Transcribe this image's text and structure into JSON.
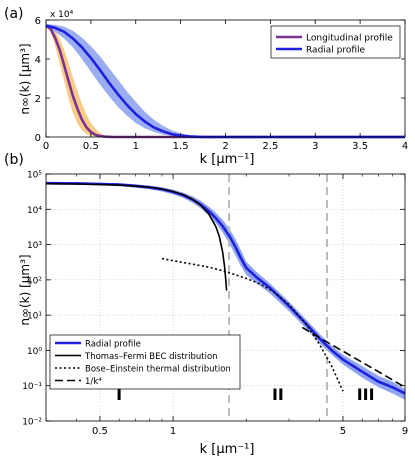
{
  "chart_data": [
    {
      "type": "line",
      "panel_label": "(a)",
      "xlabel": "k  [μm⁻¹]",
      "ylabel": "n∞(k) [μm³]",
      "y_exponent_label": "x 10⁴",
      "xlim": [
        0,
        4
      ],
      "ylim": [
        0,
        6
      ],
      "xticks": [
        0,
        0.5,
        1,
        1.5,
        2,
        2.5,
        3,
        3.5,
        4
      ],
      "xtick_labels": [
        "0",
        "0.5",
        "1",
        "1.5",
        "2",
        "2.5",
        "3",
        "3.5",
        "4"
      ],
      "yticks": [
        0,
        2,
        4,
        6
      ],
      "ytick_labels": [
        "0",
        "2",
        "4",
        "6"
      ],
      "grid": false,
      "legend_position": "top-right",
      "series": [
        {
          "name": "Longitudinal profile",
          "color": "#7b3294",
          "band_color": "#f9c47a",
          "x": [
            0,
            0.05,
            0.1,
            0.15,
            0.2,
            0.25,
            0.3,
            0.35,
            0.4,
            0.45,
            0.5,
            0.55,
            0.6,
            0.65,
            0.7,
            0.75,
            0.8,
            0.9,
            1.0,
            1.5,
            2,
            3,
            4
          ],
          "values": [
            5.7,
            5.55,
            5.1,
            4.5,
            3.7,
            2.9,
            2.1,
            1.45,
            0.9,
            0.5,
            0.25,
            0.12,
            0.05,
            0.02,
            0.01,
            0,
            0,
            0,
            0,
            0,
            0,
            0,
            0
          ],
          "band_lower": [
            5.7,
            5.4,
            4.7,
            3.8,
            2.9,
            2.0,
            1.25,
            0.7,
            0.35,
            0.15,
            0.05,
            0.02,
            0,
            0,
            0,
            0,
            0,
            0,
            0,
            0,
            0,
            0,
            0
          ],
          "band_upper": [
            5.7,
            5.65,
            5.45,
            5.05,
            4.5,
            3.8,
            3.05,
            2.35,
            1.7,
            1.15,
            0.72,
            0.42,
            0.22,
            0.1,
            0.05,
            0.02,
            0.01,
            0,
            0,
            0,
            0,
            0,
            0
          ]
        },
        {
          "name": "Radial profile",
          "color": "#1f1fe0",
          "band_color": "#8fa4ef",
          "x": [
            0,
            0.1,
            0.2,
            0.3,
            0.4,
            0.5,
            0.6,
            0.7,
            0.8,
            0.9,
            1.0,
            1.1,
            1.2,
            1.3,
            1.4,
            1.5,
            1.6,
            1.7,
            1.8,
            1.9,
            2.0,
            2.5,
            3,
            3.5,
            4
          ],
          "values": [
            5.7,
            5.6,
            5.4,
            5.05,
            4.6,
            4.05,
            3.45,
            2.8,
            2.2,
            1.65,
            1.18,
            0.8,
            0.5,
            0.3,
            0.15,
            0.07,
            0.03,
            0.01,
            0,
            0,
            0,
            0,
            0,
            0,
            0
          ],
          "band_lower": [
            5.6,
            5.4,
            5.05,
            4.6,
            4.0,
            3.35,
            2.7,
            2.1,
            1.55,
            1.1,
            0.72,
            0.45,
            0.26,
            0.13,
            0.06,
            0.02,
            0.01,
            0,
            0,
            0,
            0,
            0,
            0,
            0,
            0
          ],
          "band_upper": [
            5.8,
            5.75,
            5.65,
            5.45,
            5.1,
            4.65,
            4.15,
            3.55,
            2.95,
            2.35,
            1.8,
            1.3,
            0.9,
            0.58,
            0.35,
            0.19,
            0.09,
            0.04,
            0.01,
            0,
            0,
            0,
            0,
            0,
            0
          ]
        }
      ]
    },
    {
      "type": "line",
      "panel_label": "(b)",
      "xlabel": "k  [μm⁻¹]",
      "ylabel": "n∞(k) [μm³]",
      "x_scale": "log",
      "y_scale": "log",
      "xlim": [
        0.3,
        9
      ],
      "ylim": [
        0.01,
        100000
      ],
      "xticks": [
        0.5,
        1,
        5,
        9
      ],
      "xtick_labels": [
        "0.5",
        "1",
        "5",
        "9"
      ],
      "yticks": [
        0.01,
        0.1,
        1,
        10,
        100,
        1000,
        10000,
        100000
      ],
      "ytick_labels": [
        "10⁻²",
        "10⁻¹",
        "10⁰",
        "10¹",
        "10²",
        "10³",
        "10⁴",
        "10⁵"
      ],
      "grid": true,
      "legend_position": "bottom-left",
      "vlines": [
        1.7,
        4.3
      ],
      "region_labels": [
        {
          "text": "I",
          "x": 0.6,
          "y": 0.04
        },
        {
          "text": "II",
          "x": 2.7,
          "y": 0.04
        },
        {
          "text": "III",
          "x": 6.2,
          "y": 0.04
        }
      ],
      "series": [
        {
          "name": "Radial profile",
          "style": "solid-band",
          "color": "#1f1fe0",
          "band_color": "#8fa4ef",
          "x": [
            0.3,
            0.4,
            0.5,
            0.6,
            0.7,
            0.8,
            0.9,
            1.0,
            1.1,
            1.2,
            1.3,
            1.4,
            1.5,
            1.6,
            1.7,
            1.8,
            1.9,
            2.0,
            2.2,
            2.5,
            3.0,
            3.5,
            4.0,
            4.5,
            5.0,
            6.0,
            7.0,
            8.0,
            9.0
          ],
          "values": [
            55000,
            54000,
            52000,
            50000,
            46000,
            42000,
            37000,
            31000,
            25000,
            19000,
            13500,
            9000,
            5600,
            3300,
            1800,
            900,
            420,
            220,
            120,
            60,
            18,
            6,
            2.2,
            1.0,
            0.55,
            0.25,
            0.13,
            0.09,
            0.06
          ],
          "band_lower": [
            50000,
            49000,
            47000,
            45000,
            41000,
            37000,
            32000,
            26500,
            21000,
            15500,
            10500,
            6800,
            4000,
            2200,
            1100,
            520,
            250,
            140,
            80,
            42,
            13,
            4.4,
            1.6,
            0.75,
            0.4,
            0.17,
            0.09,
            0.06,
            0.04
          ],
          "band_upper": [
            60000,
            59000,
            57000,
            55000,
            51000,
            47000,
            42000,
            36000,
            30000,
            23500,
            17500,
            12000,
            8000,
            5000,
            2900,
            1500,
            700,
            330,
            170,
            80,
            24,
            8,
            3,
            1.35,
            0.75,
            0.36,
            0.19,
            0.13,
            0.08
          ]
        },
        {
          "name": "Thomas–Fermi BEC distribution",
          "style": "solid",
          "color": "#000000",
          "x": [
            0.3,
            0.4,
            0.5,
            0.6,
            0.7,
            0.8,
            0.9,
            1.0,
            1.1,
            1.2,
            1.3,
            1.4,
            1.5,
            1.55,
            1.6,
            1.63,
            1.65,
            1.66
          ],
          "values": [
            53000,
            52000,
            50500,
            48500,
            45500,
            42000,
            37500,
            32000,
            26000,
            19500,
            13000,
            7500,
            3200,
            1700,
            600,
            220,
            90,
            50
          ]
        },
        {
          "name": "Bose–Einstein thermal distribution",
          "style": "dotted",
          "color": "#000000",
          "x": [
            0.9,
            1.0,
            1.2,
            1.4,
            1.6,
            1.8,
            2.0,
            2.3,
            2.6,
            3.0,
            3.5,
            4.0,
            4.5,
            5.0
          ],
          "values": [
            400,
            350,
            280,
            230,
            180,
            140,
            110,
            75,
            45,
            20,
            6,
            1.5,
            0.35,
            0.07
          ]
        },
        {
          "name": "1/k⁴",
          "style": "dashed",
          "color": "#000000",
          "x": [
            3.4,
            4.0,
            5.0,
            6.0,
            7.0,
            8.0,
            9.0
          ],
          "values": [
            4.5,
            2.3,
            0.95,
            0.46,
            0.25,
            0.145,
            0.09
          ]
        }
      ]
    }
  ]
}
